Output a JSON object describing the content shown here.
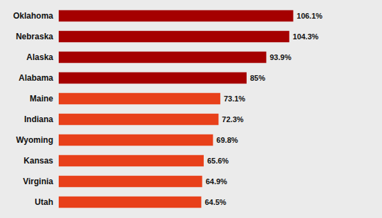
{
  "chart_data": {
    "type": "bar",
    "orientation": "horizontal",
    "categories": [
      "Oklahoma",
      "Nebraska",
      "Alaska",
      "Alabama",
      "Maine",
      "Indiana",
      "Wyoming",
      "Kansas",
      "Virginia",
      "Utah"
    ],
    "values": [
      106.1,
      104.3,
      93.9,
      85.0,
      73.1,
      72.3,
      69.8,
      65.6,
      64.9,
      64.5
    ],
    "value_labels": [
      "106.1%",
      "104.3%",
      "93.9%",
      "85%",
      "73.1%",
      "72.3%",
      "69.8%",
      "65.6%",
      "64.9%",
      "64.5%"
    ],
    "colors": [
      "#A50000",
      "#A50000",
      "#A50000",
      "#A50000",
      "#E8401A",
      "#E8401A",
      "#E8401A",
      "#E8401A",
      "#E8401A",
      "#E8401A"
    ],
    "xlim": [
      0,
      140
    ],
    "data_labels": true,
    "tick_labels": "y",
    "grid": false
  }
}
